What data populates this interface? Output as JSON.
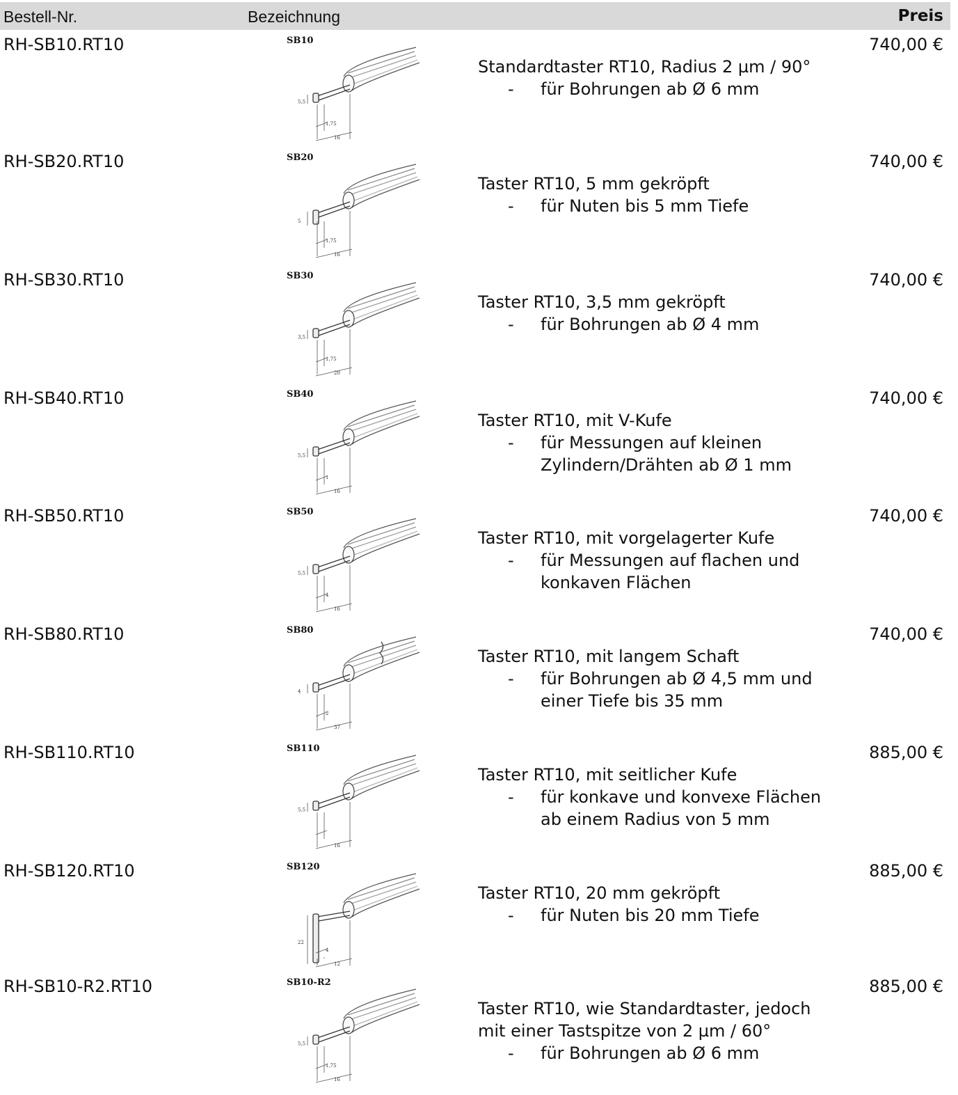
{
  "header": {
    "code_label": "Bestell-Nr.",
    "desc_label": "Bezeichnung",
    "price_label": "Preis"
  },
  "rows": [
    {
      "code": "RH-SB10.RT10",
      "sketch": "SB10",
      "desc_lines": [
        "Standardtaster RT10, Radius 2 µm / 90°"
      ],
      "bullets": [
        "für Bohrungen ab Ø 6 mm"
      ],
      "price": "740,00 €",
      "dims": [
        "5,5",
        "1,75",
        "16"
      ]
    },
    {
      "code": "RH-SB20.RT10",
      "sketch": "SB20",
      "desc_lines": [
        "Taster RT10, 5 mm gekröpft"
      ],
      "bullets": [
        "für Nuten bis 5 mm Tiefe"
      ],
      "price": "740,00 €",
      "dims": [
        "5",
        "1,75",
        "16"
      ]
    },
    {
      "code": "RH-SB30.RT10",
      "sketch": "SB30",
      "desc_lines": [
        "Taster RT10, 3,5 mm gekröpft"
      ],
      "bullets": [
        "für Bohrungen ab Ø 4 mm"
      ],
      "price": "740,00 €",
      "dims": [
        "3,5",
        "1,75",
        "20"
      ]
    },
    {
      "code": "RH-SB40.RT10",
      "sketch": "SB40",
      "desc_lines": [
        "Taster RT10, mit V-Kufe"
      ],
      "bullets": [
        "für Messungen auf kleinen",
        "Zylindern/Drähten ab Ø 1 mm"
      ],
      "price": "740,00 €",
      "dims": [
        "5,5",
        "1",
        "16"
      ]
    },
    {
      "code": "RH-SB50.RT10",
      "sketch": "SB50",
      "desc_lines": [
        "Taster RT10, mit vorgelagerter Kufe"
      ],
      "bullets": [
        "für Messungen auf flachen und",
        "konkaven Flächen"
      ],
      "price": "740,00 €",
      "dims": [
        "5,5",
        "4",
        "16"
      ]
    },
    {
      "code": "RH-SB80.RT10",
      "sketch": "SB80",
      "desc_lines": [
        "Taster RT10, mit langem Schaft"
      ],
      "bullets": [
        "für Bohrungen ab Ø 4,5 mm und",
        "einer Tiefe bis 35 mm"
      ],
      "price": "740,00 €",
      "dims": [
        "4",
        "2",
        "37"
      ]
    },
    {
      "code": "RH-SB110.RT10",
      "sketch": "SB110",
      "desc_lines": [
        "Taster RT10, mit seitlicher Kufe"
      ],
      "bullets": [
        "für konkave und konvexe Flächen",
        "ab einem Radius von 5 mm"
      ],
      "price": "885,00 €",
      "dims": [
        "5,5",
        "",
        "16"
      ]
    },
    {
      "code": "RH-SB120.RT10",
      "sketch": "SB120",
      "desc_lines": [
        "Taster RT10, 20 mm gekröpft"
      ],
      "bullets": [
        "für Nuten bis 20 mm Tiefe"
      ],
      "price": "885,00 €",
      "dims": [
        "22",
        "4",
        "12"
      ]
    },
    {
      "code": "RH-SB10-R2.RT10",
      "sketch": "SB10-R2",
      "desc_lines": [
        "Taster RT10, wie Standardtaster, jedoch",
        "mit einer Tastspitze von 2 µm / 60°"
      ],
      "bullets": [
        "für Bohrungen ab Ø 6 mm"
      ],
      "price": "885,00 €",
      "dims": [
        "5,5",
        "1,75",
        "16"
      ]
    }
  ]
}
